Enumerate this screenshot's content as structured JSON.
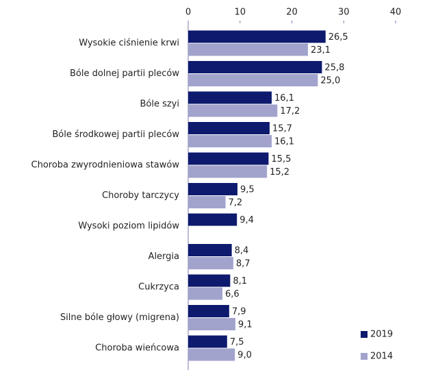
{
  "chart_data": {
    "type": "bar",
    "orientation": "horizontal",
    "categories": [
      "Wysokie ciśnienie krwi",
      "Bóle dolnej partii pleców",
      "Bóle szyi",
      "Bóle środkowej partii pleców",
      "Choroba zwyrodnieniowa stawów",
      "Choroby tarczycy",
      "Wysoki poziom lipidów",
      "Alergia",
      "Cukrzyca",
      "Silne bóle głowy (migrena)",
      "Choroba wieńcowa"
    ],
    "series": [
      {
        "name": "2019",
        "color": "#0d1a6e",
        "values": [
          26.5,
          25.8,
          16.1,
          15.7,
          15.5,
          9.5,
          9.4,
          8.4,
          8.1,
          7.9,
          7.5
        ],
        "value_labels": [
          "26,5",
          "25,8",
          "16,1",
          "15,7",
          "15,5",
          "9,5",
          "9,4",
          "8,4",
          "8,1",
          "7,9",
          "7,5"
        ]
      },
      {
        "name": "2014",
        "color": "#a1a3cc",
        "values": [
          23.1,
          25.0,
          17.2,
          16.1,
          15.2,
          7.2,
          null,
          8.7,
          6.6,
          9.1,
          9.0
        ],
        "value_labels": [
          "23,1",
          "25,0",
          "17,2",
          "16,1",
          "15,2",
          "7,2",
          null,
          "8,7",
          "6,6",
          "9,1",
          "9,0"
        ]
      }
    ],
    "xlim": [
      0,
      40
    ],
    "xticks": [
      0,
      10,
      20,
      30,
      40
    ],
    "legend": "bottom-right"
  }
}
